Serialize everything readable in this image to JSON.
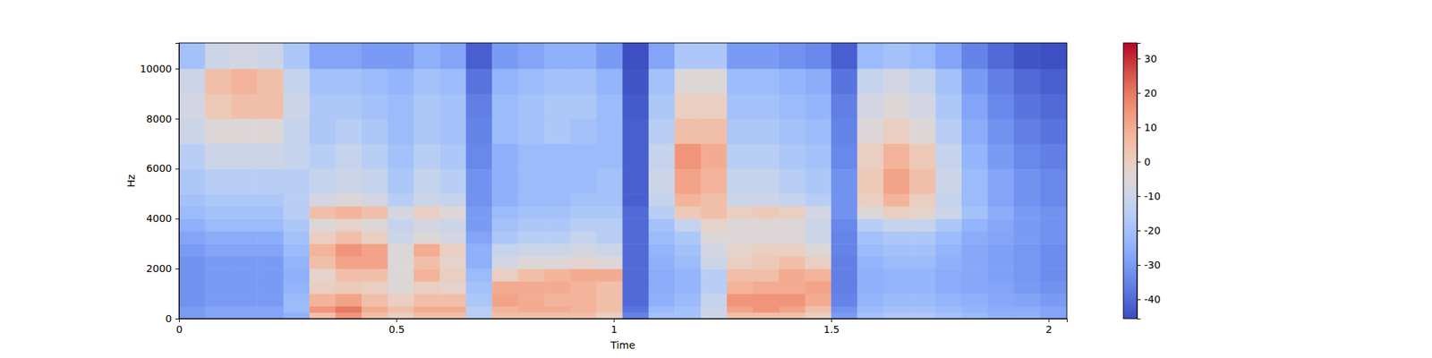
{
  "chart_data": {
    "type": "heatmap",
    "x_label": "Time",
    "y_label": "Hz",
    "xlim": [
      0,
      2.042
    ],
    "ylim": [
      0,
      11025
    ],
    "xticks": [
      0,
      0.5,
      1,
      1.5,
      2
    ],
    "yticks": [
      0,
      2000,
      4000,
      6000,
      8000,
      10000
    ],
    "time_bins": [
      0,
      0.06,
      0.12,
      0.18,
      0.24,
      0.3,
      0.36,
      0.42,
      0.48,
      0.54,
      0.6,
      0.66,
      0.72,
      0.78,
      0.84,
      0.9,
      0.96,
      1.02,
      1.08,
      1.14,
      1.2,
      1.26,
      1.32,
      1.38,
      1.44,
      1.5,
      1.56,
      1.62,
      1.68,
      1.74,
      1.8,
      1.86,
      1.92,
      1.98,
      2.042
    ],
    "freq_bins": [
      0,
      250,
      500,
      1000,
      1500,
      2000,
      2500,
      3000,
      3500,
      4000,
      4500,
      5000,
      6000,
      7000,
      8000,
      9000,
      10000,
      11025
    ],
    "cells": [
      [
        -30,
        -28,
        -28,
        -28,
        -25,
        5,
        15,
        5,
        0,
        5,
        5,
        -15,
        5,
        5,
        5,
        5,
        0,
        -35,
        -20,
        -20,
        -10,
        5,
        5,
        5,
        0,
        -30,
        -20,
        -18,
        -18,
        -20,
        -22,
        -25,
        -25,
        -28
      ],
      [
        -30,
        -28,
        -28,
        -28,
        -22,
        15,
        20,
        10,
        5,
        10,
        10,
        -15,
        8,
        10,
        10,
        8,
        5,
        -38,
        -22,
        -20,
        -10,
        12,
        15,
        12,
        5,
        -32,
        -22,
        -20,
        -20,
        -22,
        -24,
        -26,
        -26,
        -28
      ],
      [
        -32,
        -30,
        -30,
        -30,
        -22,
        8,
        12,
        5,
        0,
        5,
        5,
        -18,
        12,
        10,
        8,
        8,
        5,
        -40,
        -25,
        -22,
        -12,
        15,
        15,
        15,
        10,
        -35,
        -24,
        -22,
        -22,
        -24,
        -25,
        -27,
        -28,
        -30
      ],
      [
        -32,
        -30,
        -30,
        -30,
        -24,
        0,
        2,
        0,
        -5,
        0,
        -2,
        -20,
        10,
        10,
        10,
        8,
        5,
        -40,
        -26,
        -24,
        -15,
        8,
        10,
        10,
        12,
        -36,
        -25,
        -24,
        -24,
        -26,
        -27,
        -28,
        -30,
        -32
      ],
      [
        -32,
        -30,
        -30,
        -30,
        -25,
        -2,
        5,
        5,
        -5,
        8,
        0,
        -22,
        0,
        5,
        8,
        10,
        10,
        -40,
        -26,
        -24,
        -15,
        5,
        5,
        10,
        8,
        -36,
        -25,
        -24,
        -24,
        -26,
        -27,
        -29,
        -31,
        -33
      ],
      [
        -32,
        -30,
        -30,
        -30,
        -24,
        5,
        12,
        12,
        -5,
        5,
        -2,
        -25,
        -8,
        -5,
        -5,
        -3,
        -5,
        -40,
        -25,
        -22,
        -10,
        0,
        2,
        5,
        0,
        -36,
        -24,
        -22,
        -22,
        -25,
        -27,
        -29,
        -31,
        -33
      ],
      [
        -30,
        -28,
        -28,
        -28,
        -22,
        8,
        15,
        12,
        -5,
        10,
        0,
        -25,
        -12,
        -10,
        -10,
        -8,
        -10,
        -40,
        -24,
        -20,
        -8,
        -2,
        0,
        0,
        -5,
        -35,
        -22,
        -20,
        -20,
        -24,
        -27,
        -29,
        -31,
        -33
      ],
      [
        -28,
        -26,
        -26,
        -26,
        -20,
        0,
        5,
        0,
        -10,
        -5,
        -8,
        -28,
        -18,
        -15,
        -15,
        -12,
        -15,
        -40,
        -22,
        -18,
        -5,
        -5,
        -5,
        -5,
        -10,
        -35,
        -20,
        -18,
        -18,
        -22,
        -26,
        -28,
        -30,
        -32
      ],
      [
        -25,
        -22,
        -22,
        -22,
        -18,
        -5,
        -2,
        -5,
        -12,
        -8,
        -10,
        -30,
        -20,
        -18,
        -18,
        -15,
        -15,
        -40,
        -20,
        -12,
        -2,
        -5,
        -5,
        -5,
        -10,
        -34,
        -15,
        -12,
        -12,
        -18,
        -24,
        -27,
        -30,
        -32
      ],
      [
        -22,
        -20,
        -20,
        -20,
        -15,
        5,
        8,
        5,
        -8,
        0,
        -5,
        -30,
        -22,
        -20,
        -20,
        -18,
        -18,
        -40,
        -15,
        2,
        5,
        0,
        2,
        0,
        -8,
        -32,
        -5,
        0,
        -2,
        -10,
        -20,
        -26,
        -30,
        -32
      ],
      [
        -20,
        -18,
        -18,
        -18,
        -15,
        -8,
        -5,
        -8,
        -15,
        -10,
        -12,
        -32,
        -25,
        -22,
        -22,
        -20,
        -20,
        -42,
        -12,
        8,
        5,
        -10,
        -10,
        -12,
        -15,
        -32,
        0,
        8,
        0,
        -12,
        -22,
        -28,
        -32,
        -34
      ],
      [
        -18,
        -15,
        -15,
        -15,
        -15,
        -12,
        -10,
        -12,
        -18,
        -12,
        -15,
        -32,
        -25,
        -22,
        -22,
        -22,
        -20,
        -42,
        -10,
        12,
        8,
        -12,
        -12,
        -15,
        -18,
        -32,
        2,
        12,
        5,
        -10,
        -22,
        -28,
        -32,
        -34
      ],
      [
        -15,
        -10,
        -10,
        -10,
        -12,
        -15,
        -12,
        -15,
        -20,
        -15,
        -18,
        -34,
        -25,
        -22,
        -22,
        -22,
        -22,
        -42,
        -12,
        15,
        10,
        -15,
        -15,
        -18,
        -20,
        -34,
        0,
        8,
        2,
        -12,
        -24,
        -30,
        -34,
        -36
      ],
      [
        -10,
        -5,
        -5,
        -5,
        -12,
        -18,
        -15,
        -18,
        -22,
        -18,
        -20,
        -35,
        -22,
        -20,
        -18,
        -20,
        -22,
        -42,
        -15,
        5,
        5,
        -18,
        -18,
        -20,
        -22,
        -35,
        -5,
        0,
        -5,
        -15,
        -26,
        -32,
        -36,
        -38
      ],
      [
        -8,
        2,
        5,
        5,
        -10,
        -18,
        -18,
        -20,
        -22,
        -18,
        -20,
        -36,
        -22,
        -20,
        -18,
        -18,
        -22,
        -43,
        -18,
        0,
        0,
        -20,
        -20,
        -22,
        -24,
        -36,
        -8,
        -5,
        -8,
        -18,
        -28,
        -34,
        -38,
        -40
      ],
      [
        -10,
        5,
        8,
        5,
        -12,
        -20,
        -20,
        -22,
        -24,
        -20,
        -22,
        -38,
        -24,
        -22,
        -20,
        -20,
        -24,
        -44,
        -20,
        -5,
        -5,
        -22,
        -22,
        -24,
        -26,
        -38,
        -12,
        -8,
        -12,
        -20,
        -30,
        -36,
        -40,
        -42
      ],
      [
        -20,
        -10,
        -8,
        -10,
        -18,
        -28,
        -28,
        -30,
        -30,
        -25,
        -28,
        -42,
        -30,
        -28,
        -25,
        -25,
        -30,
        -45,
        -28,
        -18,
        -18,
        -30,
        -30,
        -32,
        -34,
        -42,
        -22,
        -20,
        -22,
        -28,
        -35,
        -40,
        -44,
        -45
      ]
    ],
    "colorbar_range": [
      -45.6,
      34.5
    ],
    "colorbar_ticks": [
      -40,
      -30,
      -20,
      -10,
      0,
      10,
      20,
      30
    ]
  }
}
